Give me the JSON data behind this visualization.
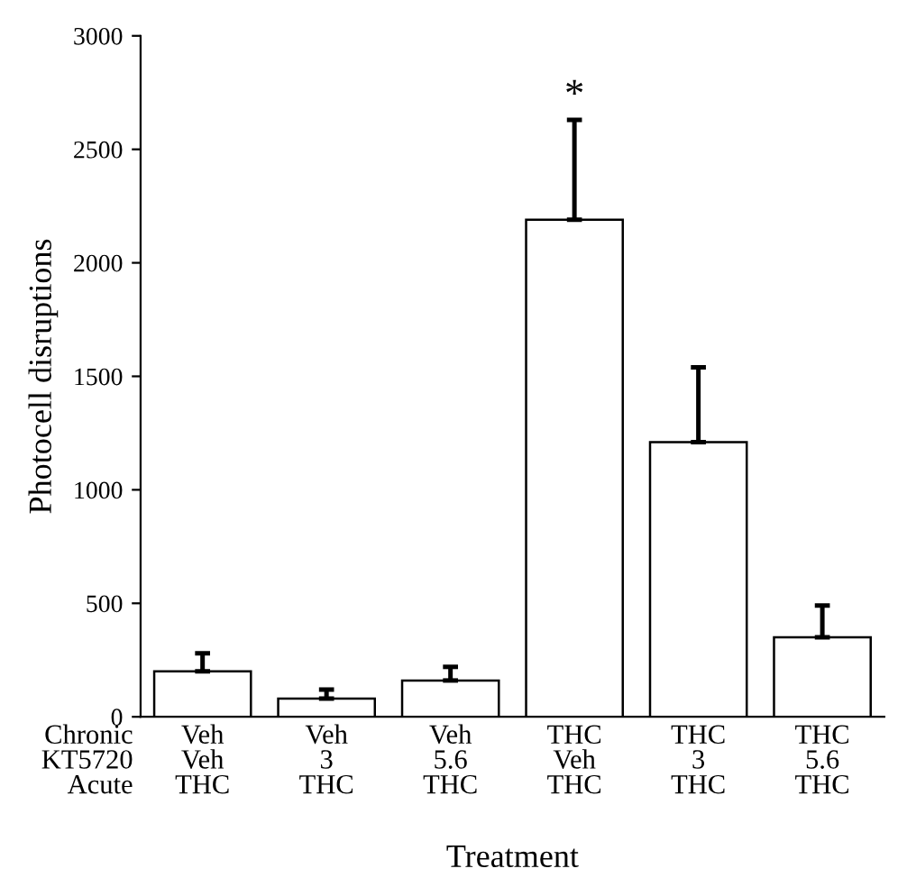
{
  "chart_data": {
    "type": "bar",
    "xlabel": "Treatment",
    "ylabel": "Photocell disruptions",
    "categories": [
      "Veh\nVeh\nTHC",
      "Veh\n3\nTHC",
      "Veh\n5.6\nTHC",
      "THC\nVeh\nTHC",
      "THC\n3\nTHC",
      "THC\n5.6\nTHC"
    ],
    "values": [
      200,
      80,
      160,
      2190,
      1210,
      350
    ],
    "errors": [
      [
        200,
        280
      ],
      [
        80,
        120
      ],
      [
        160,
        220
      ],
      [
        2190,
        2630
      ],
      [
        1210,
        1540
      ],
      [
        350,
        490
      ]
    ],
    "color": "#ffffff",
    "ylim": [
      0,
      3000
    ],
    "yticks": [
      0,
      500,
      1000,
      1500,
      2000,
      2500,
      3000
    ],
    "grid": false,
    "annotations": [
      "Chronic\nKT5720\nAcute",
      "*"
    ]
  }
}
